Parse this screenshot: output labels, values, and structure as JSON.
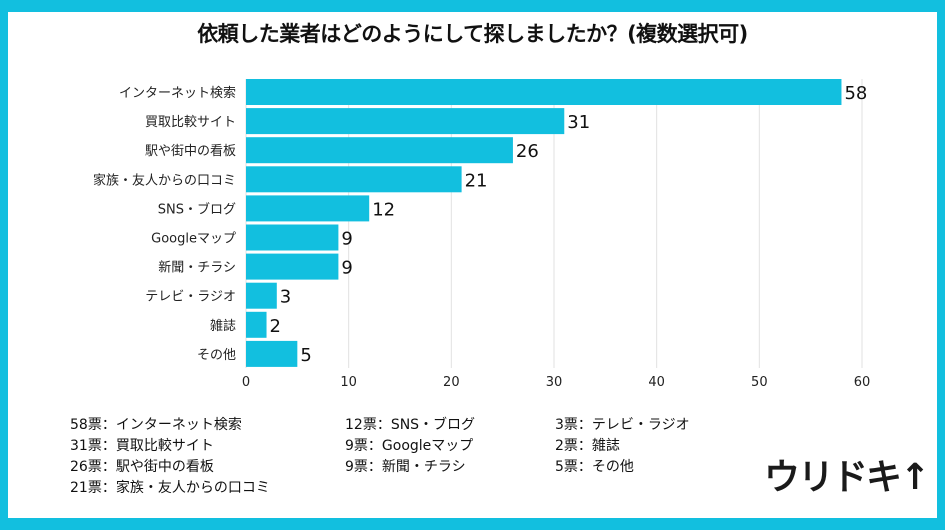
{
  "chart_data": {
    "type": "bar",
    "orientation": "horizontal",
    "title": "依頼した業者はどのようにして探しましたか？(複数選択可)",
    "categories": [
      "インターネット検索",
      "買取比較サイト",
      "駅や街中の看板",
      "家族・友人からの口コミ",
      "SNS・ブログ",
      "Googleマップ",
      "新聞・チラシ",
      "テレビ・ラジオ",
      "雑誌",
      "その他"
    ],
    "values": [
      58,
      31,
      26,
      21,
      12,
      9,
      9,
      3,
      2,
      5
    ],
    "xlim": [
      0,
      60
    ],
    "xticks": [
      0,
      10,
      20,
      30,
      40,
      50,
      60
    ],
    "grid": true,
    "bar_color": "#12bfdf"
  },
  "legend": {
    "columns": [
      [
        "58票：インターネット検索",
        "31票：買取比較サイト",
        "26票：駅や街中の看板",
        "21票：家族・友人からの口コミ"
      ],
      [
        "12票：SNS・ブログ",
        "9票：Googleマップ",
        "9票：新聞・チラシ"
      ],
      [
        "3票：テレビ・ラジオ",
        "2票：雑誌",
        "5票：その他"
      ]
    ]
  },
  "logo": {
    "text": "ウリドキ"
  },
  "colors": {
    "frame": "#12bfdf",
    "bar": "#12bfdf"
  }
}
